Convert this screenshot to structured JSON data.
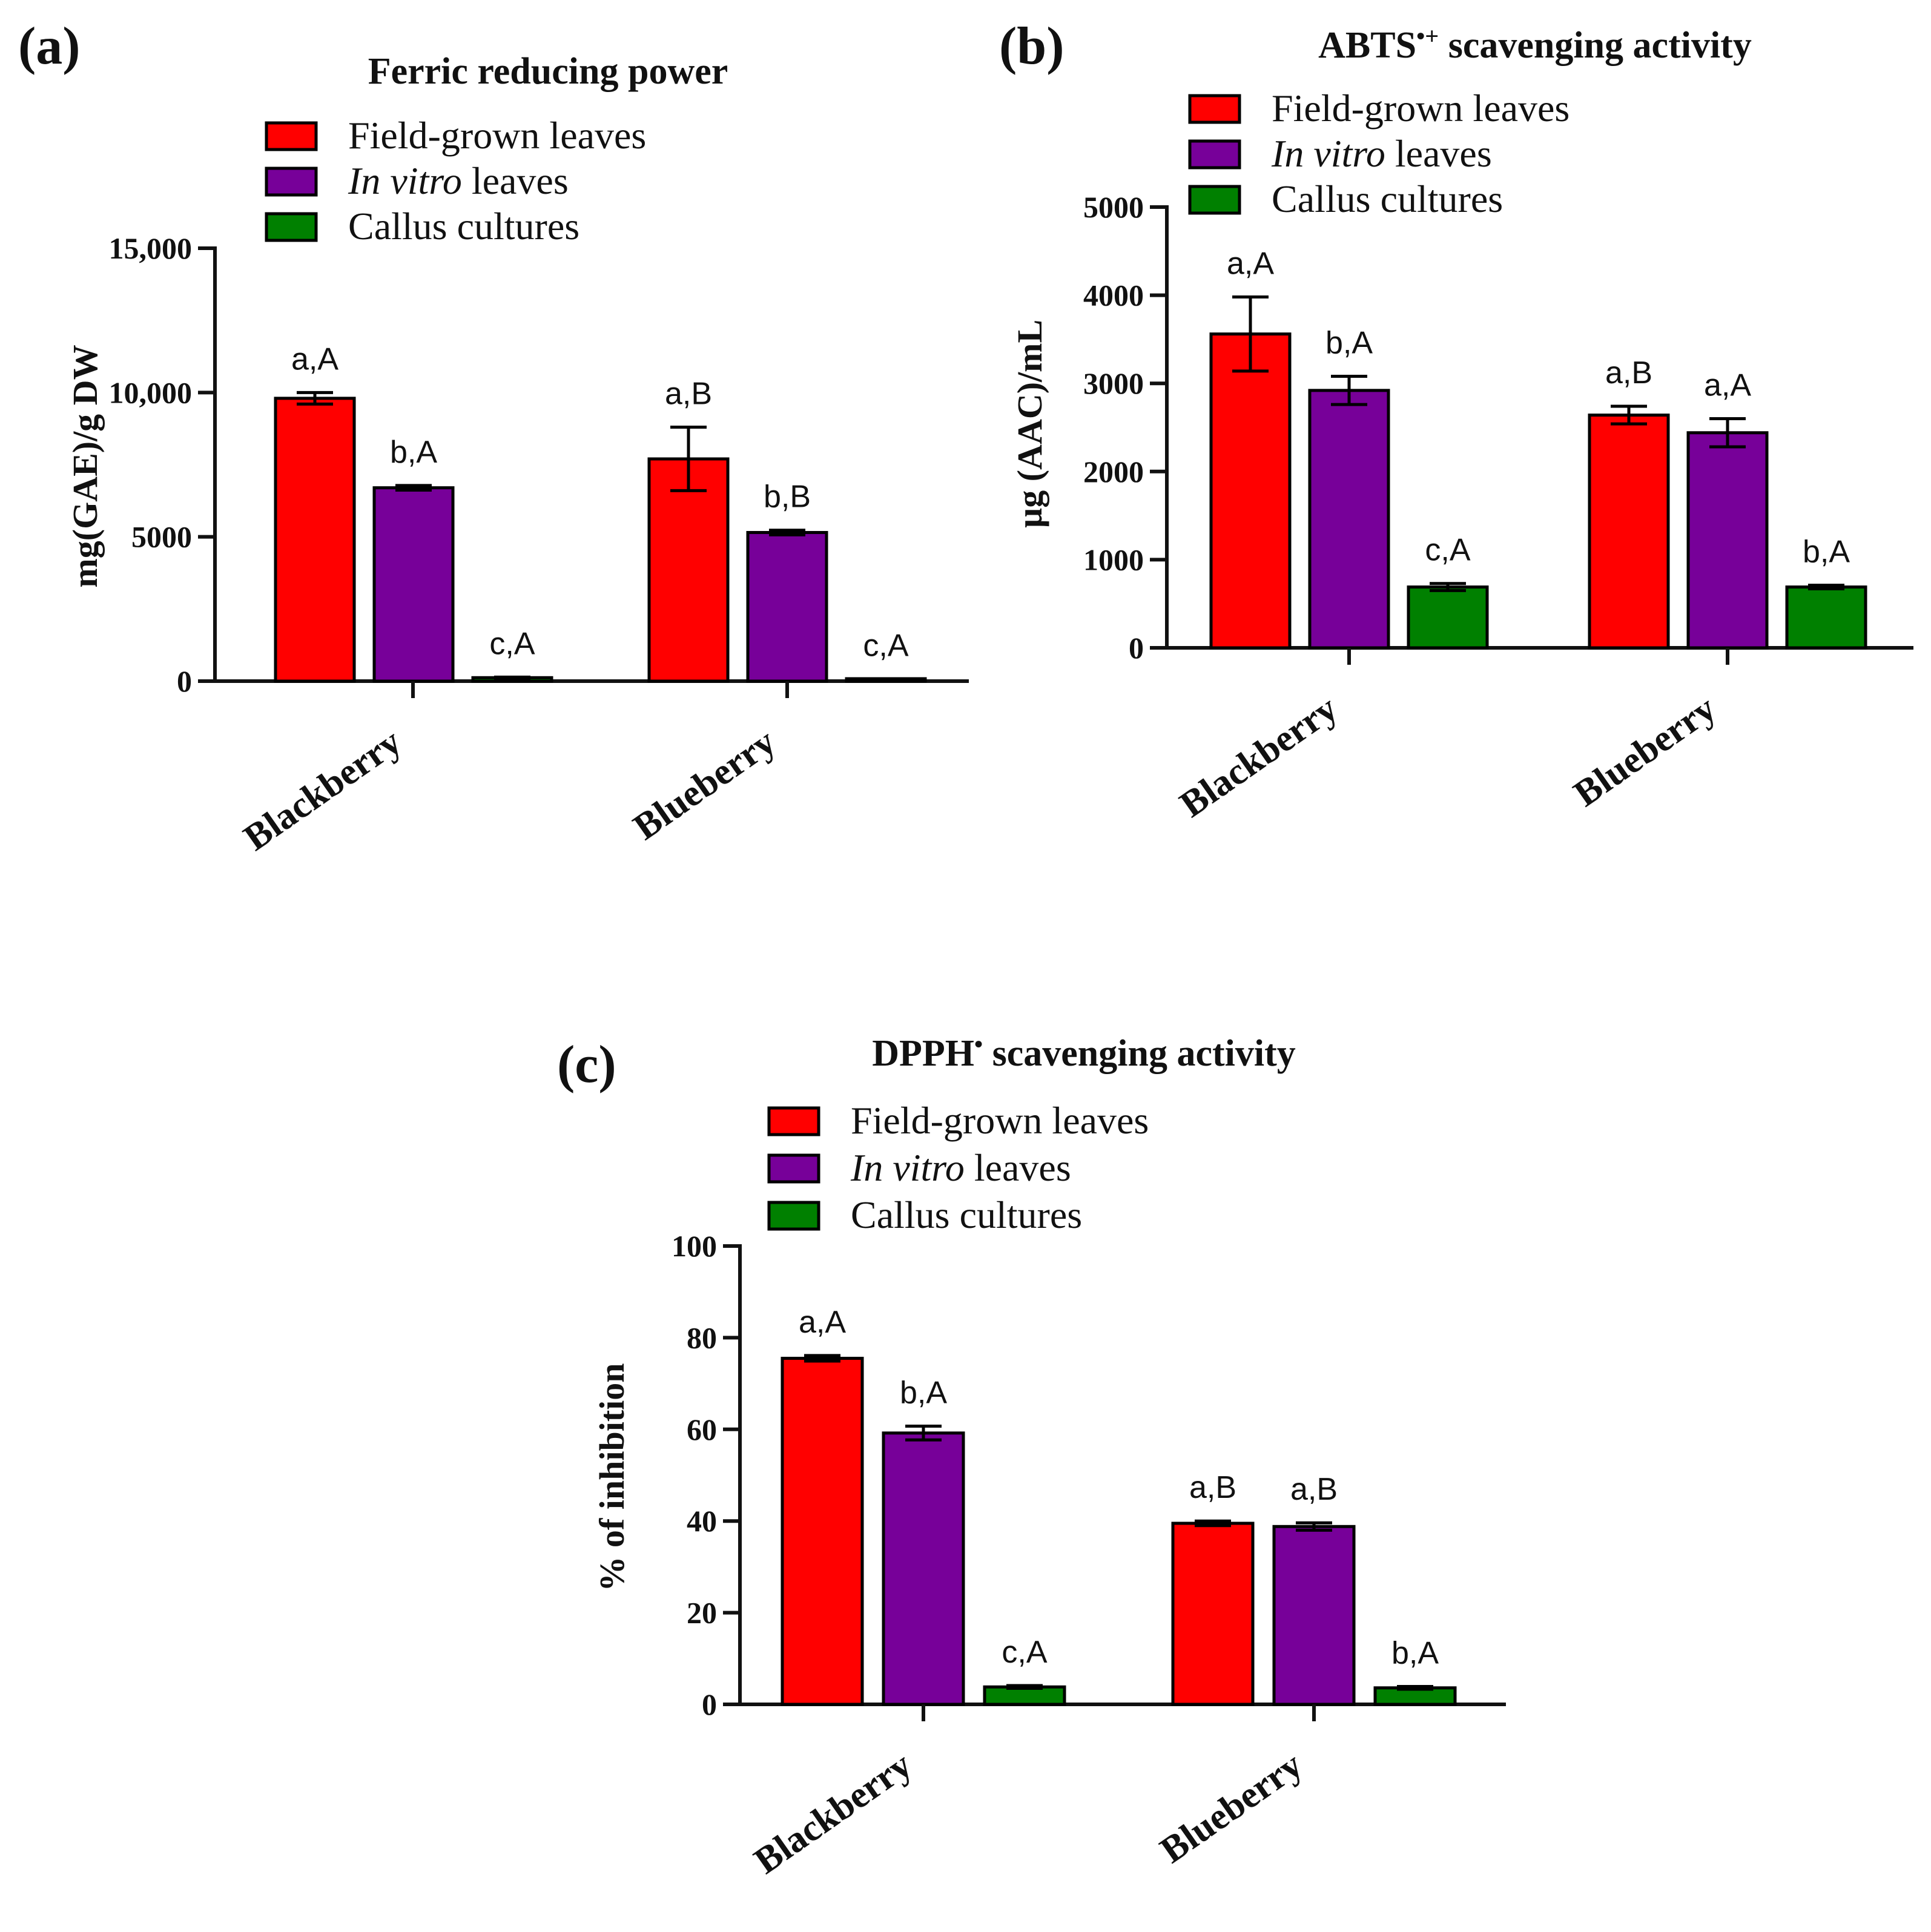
{
  "colors": {
    "field": "#ff0000",
    "vitro": "#770099",
    "callus": "#008000",
    "outline": "#000000"
  },
  "chart_data": [
    {
      "type": "bar",
      "panel": "(a)",
      "title": "Ferric reducing power",
      "title_sup": "",
      "ylabel": "mg(GAE)/g DW",
      "categories": [
        "Blackberry",
        "Blueberry"
      ],
      "ylim": [
        0,
        15000
      ],
      "yticks": [
        0,
        5000,
        10000,
        15000
      ],
      "ytick_labels": [
        "0",
        "5000",
        "10,000",
        "15,000"
      ],
      "legend": [
        {
          "pre": "",
          "italic": "",
          "post": "Field-grown leaves",
          "series": "field"
        },
        {
          "pre": "",
          "italic": "In vitro",
          "post": " leaves",
          "series": "vitro"
        },
        {
          "pre": "",
          "italic": "",
          "post": "Callus cultures",
          "series": "callus"
        }
      ],
      "series": [
        {
          "name": "Field-grown leaves",
          "key": "field",
          "values": [
            9800,
            7700
          ],
          "errors": [
            200,
            1100
          ],
          "labels": [
            "a,A",
            "a,B"
          ]
        },
        {
          "name": "In vitro leaves",
          "key": "vitro",
          "values": [
            6700,
            5150
          ],
          "errors": [
            80,
            80
          ],
          "labels": [
            "b,A",
            "b,B"
          ]
        },
        {
          "name": "Callus cultures",
          "key": "callus",
          "values": [
            120,
            60
          ],
          "errors": [
            20,
            10
          ],
          "labels": [
            "c,A",
            "c,A"
          ]
        }
      ]
    },
    {
      "type": "bar",
      "panel": "(b)",
      "title": "ABTS",
      "title_sup": "•+",
      "title_rest": " scavenging activity",
      "ylabel": "µg (AAC)/mL",
      "categories": [
        "Blackberry",
        "Blueberry"
      ],
      "ylim": [
        0,
        5000
      ],
      "yticks": [
        0,
        1000,
        2000,
        3000,
        4000,
        5000
      ],
      "ytick_labels": [
        "0",
        "1000",
        "2000",
        "3000",
        "4000",
        "5000"
      ],
      "legend": [
        {
          "pre": "",
          "italic": "",
          "post": "Field-grown leaves",
          "series": "field"
        },
        {
          "pre": "",
          "italic": "In vitro",
          "post": " leaves",
          "series": "vitro"
        },
        {
          "pre": "",
          "italic": "",
          "post": "Callus cultures",
          "series": "callus"
        }
      ],
      "series": [
        {
          "name": "Field-grown leaves",
          "key": "field",
          "values": [
            3560,
            2640
          ],
          "errors": [
            420,
            100
          ],
          "labels": [
            "a,A",
            "a,B"
          ]
        },
        {
          "name": "In vitro leaves",
          "key": "vitro",
          "values": [
            2920,
            2440
          ],
          "errors": [
            160,
            160
          ],
          "labels": [
            "b,A",
            "a,A"
          ]
        },
        {
          "name": "Callus cultures",
          "key": "callus",
          "values": [
            690,
            690
          ],
          "errors": [
            40,
            20
          ],
          "labels": [
            "c,A",
            "b,A"
          ]
        }
      ]
    },
    {
      "type": "bar",
      "panel": "(c)",
      "title": "DPPH",
      "title_sup": "•",
      "title_rest": " scavenging activity",
      "ylabel": "% of inhibition",
      "categories": [
        "Blackberry",
        "Blueberry"
      ],
      "ylim": [
        0,
        100
      ],
      "yticks": [
        0,
        20,
        40,
        60,
        80,
        100
      ],
      "ytick_labels": [
        "0",
        "20",
        "40",
        "60",
        "80",
        "100"
      ],
      "legend": [
        {
          "pre": "",
          "italic": "",
          "post": "Field-grown leaves",
          "series": "field"
        },
        {
          "pre": "",
          "italic": "In vitro",
          "post": " leaves",
          "series": "vitro"
        },
        {
          "pre": "",
          "italic": "",
          "post": "Callus cultures",
          "series": "callus"
        }
      ],
      "series": [
        {
          "name": "Field-grown leaves",
          "key": "field",
          "values": [
            75.5,
            39.5
          ],
          "errors": [
            0.6,
            0.5
          ],
          "labels": [
            "a,A",
            "a,B"
          ]
        },
        {
          "name": "In vitro leaves",
          "key": "vitro",
          "values": [
            59.2,
            38.8
          ],
          "errors": [
            1.5,
            0.8
          ],
          "labels": [
            "b,A",
            "a,B"
          ]
        },
        {
          "name": "Callus cultures",
          "key": "callus",
          "values": [
            3.8,
            3.6
          ],
          "errors": [
            0.3,
            0.3
          ],
          "labels": [
            "c,A",
            "b,A"
          ]
        }
      ]
    }
  ]
}
